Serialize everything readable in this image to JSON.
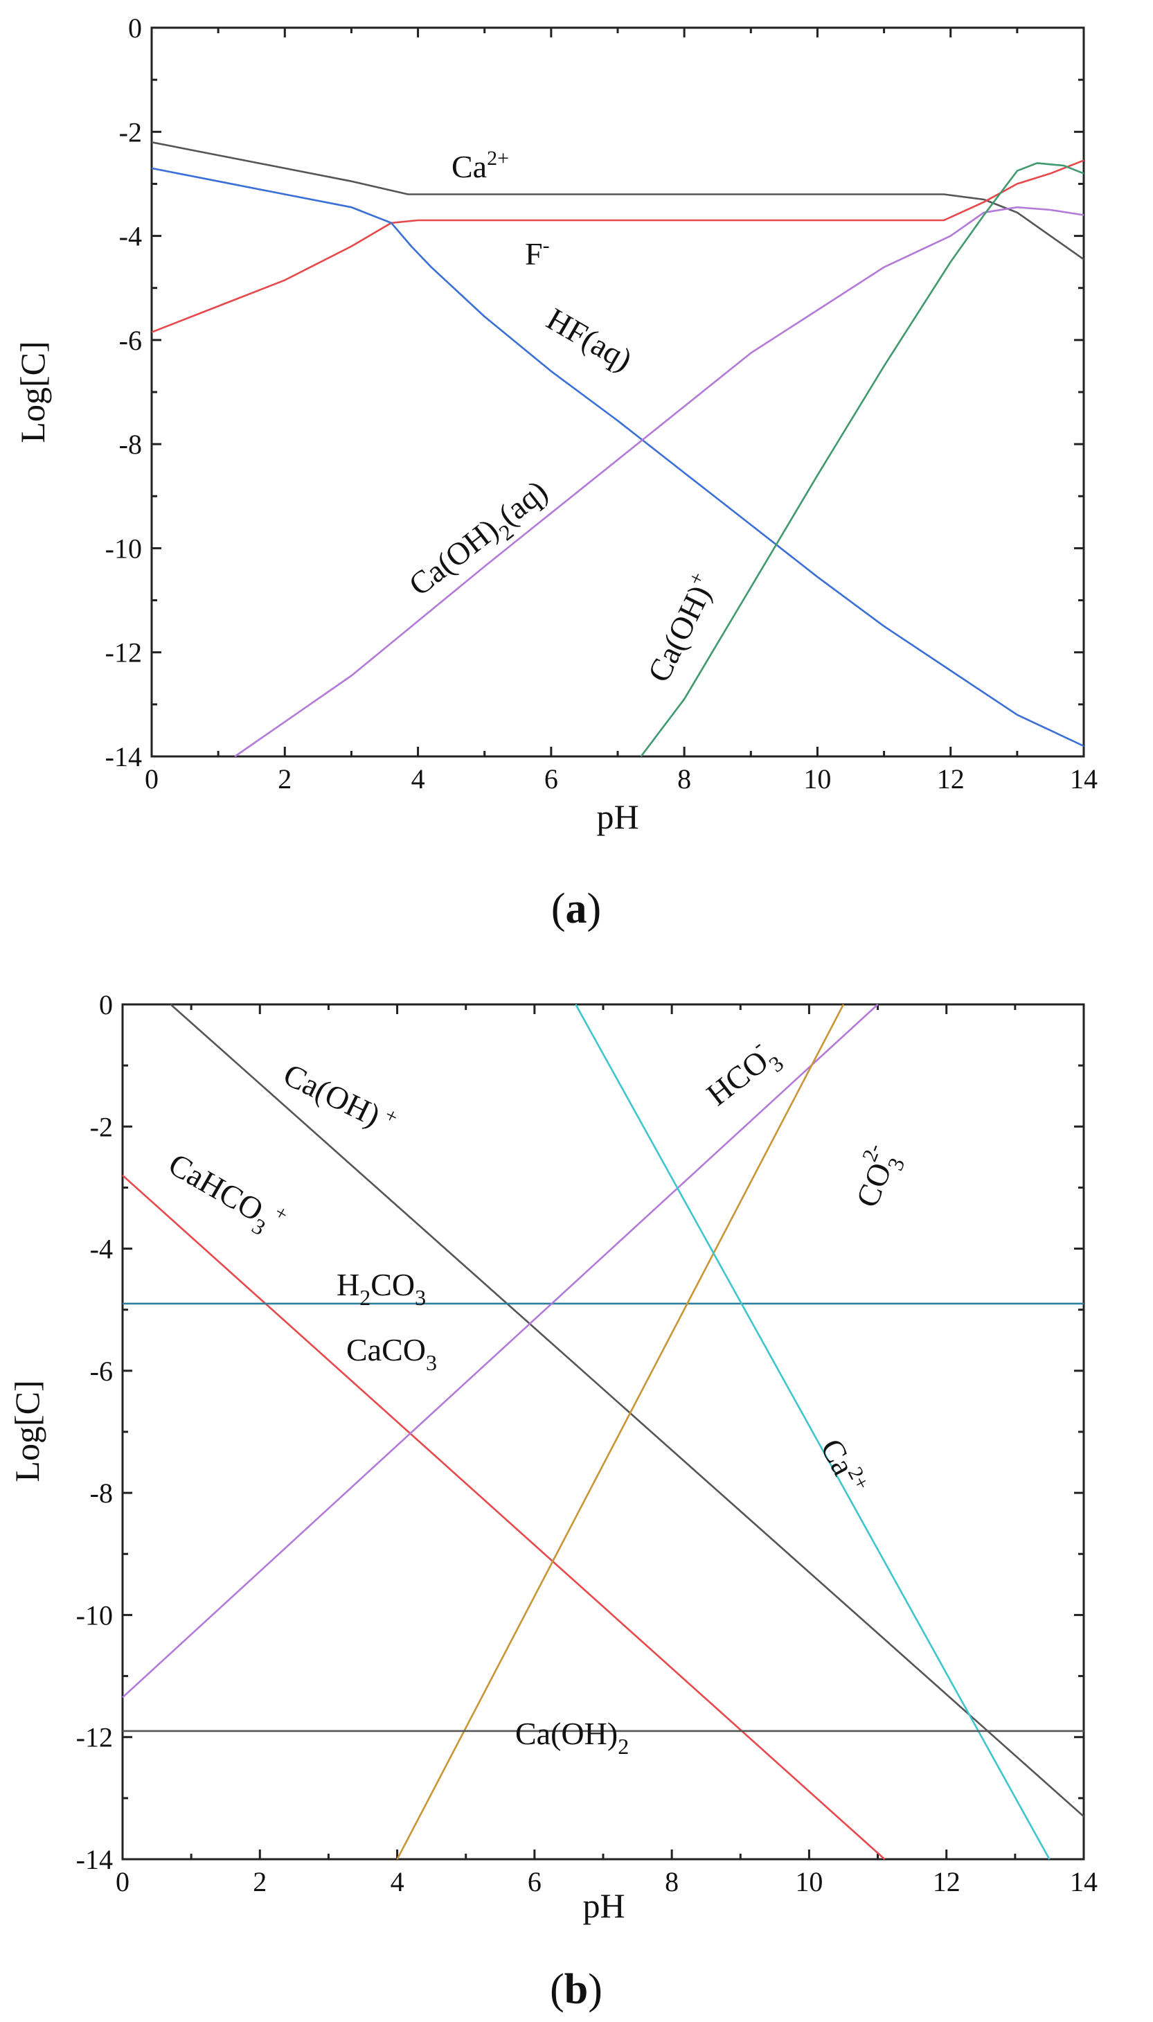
{
  "figure_labels": {
    "a_prefix": "(",
    "a_letter": "a",
    "a_suffix": ")",
    "b_prefix": "(",
    "b_letter": "b",
    "b_suffix": ")"
  },
  "chart_data": [
    {
      "id": "a",
      "type": "line",
      "xlabel": "pH",
      "ylabel": "Log[C]",
      "xlim": [
        0,
        14
      ],
      "ylim": [
        -14,
        0
      ],
      "xticks": [
        0,
        2,
        4,
        6,
        8,
        10,
        12,
        14
      ],
      "yticks": [
        0,
        -2,
        -4,
        -6,
        -8,
        -10,
        -12,
        -14
      ],
      "grid": false,
      "series": [
        {
          "name": "Ca2+",
          "color": "#555555",
          "points": [
            [
              0,
              -2.2
            ],
            [
              1,
              -2.45
            ],
            [
              2,
              -2.7
            ],
            [
              3,
              -2.95
            ],
            [
              3.85,
              -3.2
            ],
            [
              5,
              -3.2
            ],
            [
              8,
              -3.2
            ],
            [
              11,
              -3.2
            ],
            [
              11.9,
              -3.2
            ],
            [
              12.5,
              -3.3
            ],
            [
              13,
              -3.55
            ],
            [
              13.5,
              -4.0
            ],
            [
              14,
              -4.45
            ]
          ]
        },
        {
          "name": "F-",
          "color": "#e8484b",
          "points": [
            [
              0,
              -5.85
            ],
            [
              1,
              -5.35
            ],
            [
              2,
              -4.85
            ],
            [
              3,
              -4.2
            ],
            [
              3.6,
              -3.75
            ],
            [
              4,
              -3.7
            ],
            [
              8,
              -3.7
            ],
            [
              11.9,
              -3.7
            ],
            [
              12.5,
              -3.35
            ],
            [
              13,
              -3.0
            ],
            [
              13.5,
              -2.8
            ],
            [
              14,
              -2.55
            ]
          ]
        },
        {
          "name": "HF(aq)",
          "color": "#3a6fd8",
          "points": [
            [
              0,
              -2.7
            ],
            [
              1,
              -2.95
            ],
            [
              2,
              -3.2
            ],
            [
              3,
              -3.45
            ],
            [
              3.6,
              -3.75
            ],
            [
              3.9,
              -4.2
            ],
            [
              4.2,
              -4.6
            ],
            [
              5,
              -5.55
            ],
            [
              6,
              -6.6
            ],
            [
              7,
              -7.55
            ],
            [
              8,
              -8.55
            ],
            [
              9,
              -9.55
            ],
            [
              10,
              -10.55
            ],
            [
              11,
              -11.5
            ],
            [
              12,
              -12.35
            ],
            [
              13,
              -13.2
            ],
            [
              14,
              -13.8
            ]
          ]
        },
        {
          "name": "Ca(OH)2(aq)",
          "color": "#b47ad9",
          "points": [
            [
              1.25,
              -14
            ],
            [
              3,
              -12.45
            ],
            [
              5,
              -10.35
            ],
            [
              7,
              -8.3
            ],
            [
              9,
              -6.25
            ],
            [
              11,
              -4.6
            ],
            [
              12,
              -4.0
            ],
            [
              12.5,
              -3.55
            ],
            [
              13,
              -3.45
            ],
            [
              13.5,
              -3.5
            ],
            [
              14,
              -3.6
            ]
          ]
        },
        {
          "name": "Ca(OH)+",
          "color": "#3f9a6e",
          "points": [
            [
              7.35,
              -14
            ],
            [
              8,
              -12.9
            ],
            [
              9,
              -10.75
            ],
            [
              10,
              -8.6
            ],
            [
              11,
              -6.5
            ],
            [
              12,
              -4.5
            ],
            [
              12.5,
              -3.6
            ],
            [
              13,
              -2.75
            ],
            [
              13.3,
              -2.6
            ],
            [
              13.7,
              -2.65
            ],
            [
              14,
              -2.8
            ]
          ]
        }
      ],
      "annotations": [
        {
          "text": "Ca",
          "sup": "2+"
        },
        {
          "text": "F",
          "sup": "-"
        },
        {
          "text": "HF(aq)"
        },
        {
          "text": "Ca(OH)",
          "sub": "2",
          "tail": "(aq)"
        },
        {
          "text": "Ca(OH)",
          "sup": "+"
        }
      ]
    },
    {
      "id": "b",
      "type": "line",
      "xlabel": "pH",
      "ylabel": "Log[C]",
      "xlim": [
        0,
        14
      ],
      "ylim": [
        -14,
        0
      ],
      "xticks": [
        0,
        2,
        4,
        6,
        8,
        10,
        12,
        14
      ],
      "yticks": [
        0,
        -2,
        -4,
        -6,
        -8,
        -10,
        -12,
        -14
      ],
      "grid": false,
      "series": [
        {
          "name": "Ca(OH)+",
          "color": "#555555",
          "points": [
            [
              0.7,
              0
            ],
            [
              14,
              -13.3
            ]
          ]
        },
        {
          "name": "CaHCO3+",
          "color": "#e8484b",
          "points": [
            [
              0,
              -2.8
            ],
            [
              11.1,
              -14
            ]
          ]
        },
        {
          "name": "H2CO3 / CaCO3",
          "color": "#2f7f9a",
          "points": [
            [
              0,
              -4.9
            ],
            [
              14,
              -4.9
            ]
          ]
        },
        {
          "name": "HCO3-",
          "color": "#b47ad9",
          "points": [
            [
              0,
              -11.35
            ],
            [
              11,
              0
            ]
          ]
        },
        {
          "name": "CO3 2-",
          "color": "#c99535",
          "points": [
            [
              4,
              -14
            ],
            [
              10.5,
              0
            ]
          ]
        },
        {
          "name": "Ca2+",
          "color": "#3ec6cf",
          "points": [
            [
              6.6,
              0
            ],
            [
              13.5,
              -14
            ]
          ]
        },
        {
          "name": "Ca(OH)2",
          "color": "#555555",
          "points": [
            [
              0,
              -11.9
            ],
            [
              14,
              -11.9
            ]
          ]
        }
      ],
      "annotations": [
        {
          "text": "Ca(OH)",
          "sup": "+"
        },
        {
          "text": "CaHCO",
          "sub": "3",
          "sup": "+"
        },
        {
          "text": "H",
          "sub": "2",
          "tail": "CO",
          "sub2": "3"
        },
        {
          "text": "CaCO",
          "sub": "3"
        },
        {
          "text": "HCO",
          "sub": "3",
          "sup": "-"
        },
        {
          "text": "CO",
          "sub": "3",
          "sup": "2-"
        },
        {
          "text": "Ca",
          "sup": "2+"
        },
        {
          "text": "Ca(OH)",
          "sub": "2"
        }
      ]
    }
  ]
}
